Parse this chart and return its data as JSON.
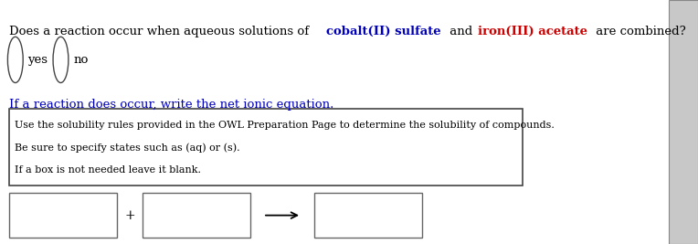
{
  "bg_color": "#ffffff",
  "question_parts": [
    {
      "text": "Does a reaction occur when aqueous solutions of ",
      "color": "#000000",
      "bold": false
    },
    {
      "text": "cobalt(II) sulfate",
      "color": "#0000bb",
      "bold": true
    },
    {
      "text": " and ",
      "color": "#000000",
      "bold": false
    },
    {
      "text": "iron(III) acetate",
      "color": "#cc0000",
      "bold": true
    },
    {
      "text": " are combined?",
      "color": "#000000",
      "bold": false
    }
  ],
  "yes_label": "yes",
  "no_label": "no",
  "reaction_label": "If a reaction does occur, write the net ionic equation.",
  "reaction_label_color": "#0000bb",
  "hint_lines": [
    "Use the solubility rules provided in the OWL Preparation Page to determine the solubility of compounds.",
    "Be sure to specify states such as (aq) or (s).",
    "If a box is not needed leave it blank."
  ],
  "hint_text_color": "#000000",
  "font_size_question": 9.5,
  "font_size_radio": 9.5,
  "font_size_reaction": 9.5,
  "font_size_hint": 8.0,
  "font_size_plus": 10,
  "scrollbar_bg": "#c8c8c8",
  "scrollbar_border": "#888888"
}
